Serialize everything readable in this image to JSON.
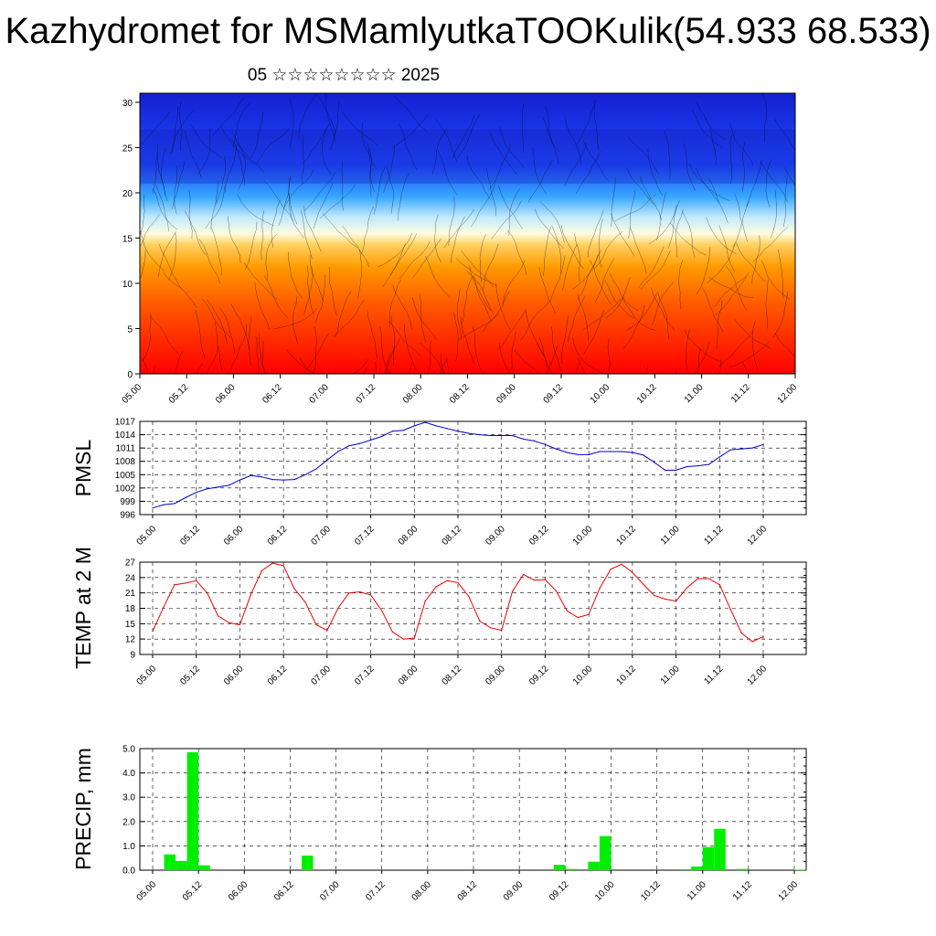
{
  "title": "Kazhydromet for MSMamlyutkaTOOKulik(54.933 68.533)",
  "subtitle": "05 ☆☆☆☆☆☆☆☆ 2025",
  "chart_data": [
    {
      "type": "heatmap",
      "ylim": [
        0,
        31
      ],
      "y_ticks": [
        "0",
        "5",
        "10",
        "15",
        "20",
        "25",
        "30"
      ],
      "x_ticks": [
        "05.00",
        "05.12",
        "06.00",
        "06.12",
        "07.00",
        "07.12",
        "08.00",
        "08.12",
        "09.00",
        "09.12",
        "10.00",
        "10.12",
        "11.00",
        "11.12",
        "12.00"
      ],
      "colormap": [
        "#ff0000",
        "#ff5a00",
        "#ff9a00",
        "#ffd060",
        "#fffce0",
        "#bfe8ff",
        "#38a8ff",
        "#1e4bff",
        "#1420d0"
      ],
      "streamlines": true
    },
    {
      "type": "line",
      "ylabel": "PMSL",
      "ylim": [
        996,
        1017
      ],
      "y_ticks": [
        "1017",
        "1014",
        "1011",
        "1008",
        "1005",
        "1002",
        "999",
        "996"
      ],
      "x_ticks": [
        "05.00",
        "05.12",
        "06.00",
        "06.12",
        "07.00",
        "07.12",
        "08.00",
        "08.12",
        "09.00",
        "09.12",
        "10.00",
        "10.12",
        "11.00",
        "11.12",
        "12.00"
      ],
      "color": "#0000cc",
      "values": [
        997.5,
        998.2,
        998.5,
        999.8,
        1001.0,
        1001.8,
        1002.2,
        1002.6,
        1003.8,
        1004.8,
        1004.5,
        1003.9,
        1003.8,
        1003.9,
        1005.0,
        1006.3,
        1008.3,
        1010.2,
        1011.5,
        1012.0,
        1012.8,
        1013.6,
        1014.8,
        1015.0,
        1016.0,
        1016.8,
        1016.0,
        1015.4,
        1014.8,
        1014.3,
        1014.0,
        1013.8,
        1013.8,
        1013.8,
        1013.0,
        1012.6,
        1011.8,
        1010.8,
        1010.0,
        1009.5,
        1009.5,
        1010.2,
        1010.2,
        1010.2,
        1010.0,
        1009.4,
        1007.8,
        1006.0,
        1006.0,
        1006.8,
        1007.0,
        1007.3,
        1009.0,
        1010.6,
        1010.8,
        1011.0,
        1011.8
      ]
    },
    {
      "type": "line",
      "ylabel": "TEMP at 2 M",
      "ylim": [
        9,
        27
      ],
      "y_ticks": [
        "27",
        "24",
        "21",
        "18",
        "15",
        "12",
        "9"
      ],
      "x_ticks": [
        "05.00",
        "05.12",
        "06.00",
        "06.12",
        "07.00",
        "07.12",
        "08.00",
        "08.12",
        "09.00",
        "09.12",
        "10.00",
        "10.12",
        "11.00",
        "11.12",
        "12.00"
      ],
      "color": "#ee0000",
      "values": [
        13.5,
        18.2,
        22.6,
        22.9,
        23.4,
        21.0,
        16.5,
        15.2,
        14.8,
        20.7,
        25.3,
        26.8,
        26.3,
        21.8,
        19.2,
        14.8,
        13.7,
        18.0,
        21.0,
        21.2,
        20.6,
        17.6,
        13.4,
        12.0,
        12.2,
        19.4,
        22.2,
        23.4,
        23.0,
        20.3,
        15.5,
        14.2,
        13.7,
        21.3,
        24.6,
        23.5,
        23.6,
        21.4,
        17.5,
        16.2,
        16.8,
        21.9,
        25.6,
        26.6,
        25.0,
        22.7,
        20.5,
        19.8,
        19.4,
        22.0,
        23.8,
        23.8,
        22.6,
        17.8,
        13.2,
        11.5,
        12.5
      ]
    },
    {
      "type": "bar",
      "ylabel": "PRECIP, mm",
      "ylim": [
        0,
        5
      ],
      "y_ticks": [
        "0.0",
        "1.0",
        "2.0",
        "3.0",
        "4.0",
        "5.0"
      ],
      "x_ticks": [
        "05.00",
        "05.12",
        "06.00",
        "06.12",
        "07.00",
        "07.12",
        "08.00",
        "08.12",
        "09.00",
        "09.12",
        "10.00",
        "10.12",
        "11.00",
        "11.12",
        "12.00"
      ],
      "color": "#00ee00",
      "values": [
        0,
        0.65,
        0.38,
        4.85,
        0.2,
        0,
        0,
        0,
        0,
        0,
        0,
        0,
        0,
        0.6,
        0,
        0,
        0,
        0,
        0,
        0,
        0,
        0,
        0,
        0,
        0,
        0,
        0,
        0,
        0,
        0,
        0,
        0,
        0,
        0,
        0,
        0.22,
        0.05,
        0,
        0.35,
        1.4,
        0,
        0,
        0,
        0,
        0,
        0,
        0.04,
        0.15,
        0.95,
        1.7,
        0,
        0.05,
        0,
        0,
        0,
        0,
        0.02
      ]
    }
  ]
}
